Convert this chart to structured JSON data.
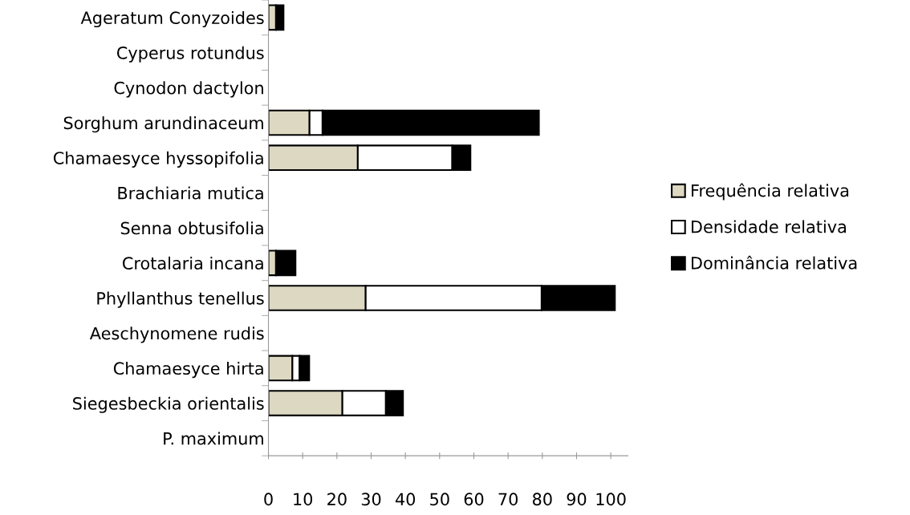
{
  "chart_data": {
    "type": "bar",
    "orientation": "horizontal",
    "stacked": true,
    "categories": [
      "Ageratum Conyzoides",
      "Cyperus rotundus",
      "Cynodon dactylon",
      "Sorghum arundinaceum",
      "Chamaesyce hyssopifolia",
      "Brachiaria mutica",
      "Senna obtusifolia",
      "Crotalaria incana",
      "Phyllanthus tenellus",
      "Aeschynomene rudis",
      "Chamaesyce hirta",
      "Siegesbeckia orientalis",
      "P. maximum"
    ],
    "series": [
      {
        "name": "Frequência relativa",
        "color": "#ddd8c2",
        "values": [
          2.2,
          0,
          0,
          12,
          26.1,
          0,
          0,
          2.2,
          28.4,
          0,
          7,
          21.6,
          0
        ]
      },
      {
        "name": "Densidade relativa",
        "color": "#ffffff",
        "values": [
          0,
          0,
          0,
          3.8,
          27.6,
          0,
          0,
          0,
          51.4,
          0,
          2.1,
          12.7,
          0
        ]
      },
      {
        "name": "Dominância relativa",
        "color": "#000000",
        "values": [
          2.2,
          0,
          0,
          63.2,
          5.3,
          0,
          0,
          5.7,
          21.4,
          0,
          2.8,
          5,
          0
        ]
      }
    ],
    "xlim": [
      0,
      105
    ],
    "xticks": [
      0,
      10,
      20,
      30,
      40,
      50,
      60,
      70,
      80,
      90,
      100
    ],
    "legend": "right",
    "grid": false
  }
}
